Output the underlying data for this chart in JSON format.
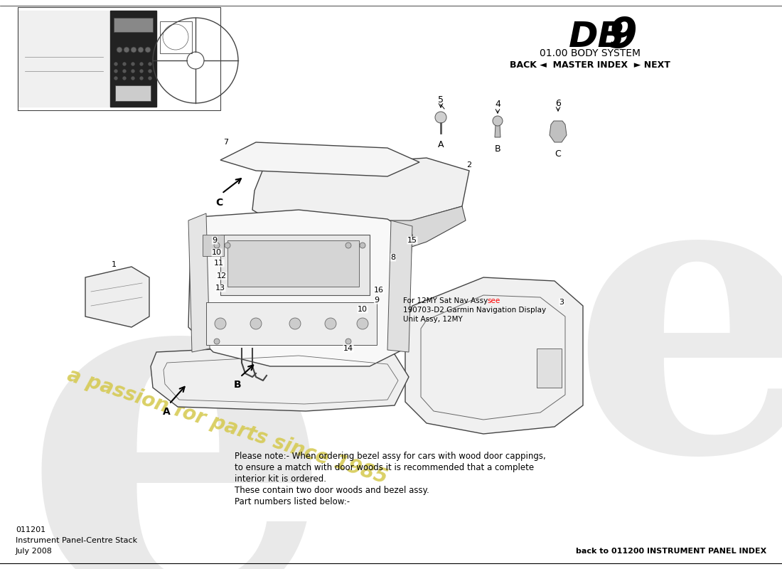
{
  "title_db9_part1": "DB",
  "title_db9_part2": "9",
  "title_system": "01.00 BODY SYSTEM",
  "nav_text": "BACK ◄  MASTER INDEX  ► NEXT",
  "page_number": "011201",
  "page_title": "Instrument Panel-Centre Stack",
  "page_date": "July 2008",
  "back_link": "back to 011200 INSTRUMENT PANEL INDEX",
  "note_text": "Please note:- When ordering bezel assy for cars with wood door cappings,\nto ensure a match with door woods it is recommended that a complete\ninterior kit is ordered.\nThese contain two door woods and bezel assy.\nPart numbers listed below:-",
  "nav_note_line1": "For 12MY Sat Nav Assy ",
  "nav_note_see": "see",
  "nav_note_line2": "190703-D2 Garmin Navigation Display",
  "nav_note_line3": "Unit Assy, 12MY",
  "bg_color": "#ffffff",
  "watermark_color_yellow": "#d4c84a",
  "watermark_color_gray": "#d8d8d8"
}
